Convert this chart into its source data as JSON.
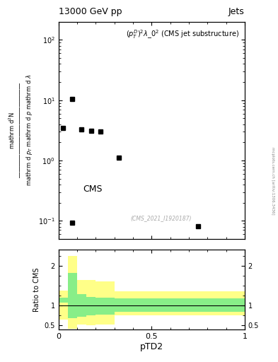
{
  "title_left": "13000 GeV pp",
  "title_right": "Jets",
  "annotation": "$(p_T^D)^2\\lambda\\_0^2$ (CMS jet substructure)",
  "watermark": "(CMS_2021_I1920187)",
  "arxiv": "mcplots.cern.ch [arXiv:1306.3436]",
  "xlabel": "pTD2",
  "ylabel_ratio": "Ratio to CMS",
  "data_x": [
    0.025,
    0.075,
    0.125,
    0.175,
    0.225,
    0.325,
    0.75
  ],
  "data_y": [
    3.5,
    10.5,
    3.3,
    3.1,
    3.0,
    1.1,
    0.082
  ],
  "data_x2": [
    0.075
  ],
  "data_y2": [
    0.092
  ],
  "ratio_bins": [
    0.0,
    0.05,
    0.1,
    0.15,
    0.2,
    0.3,
    1.0
  ],
  "ratio_green_lo": [
    1.08,
    0.68,
    0.72,
    0.75,
    0.78,
    0.85,
    0.85
  ],
  "ratio_green_hi": [
    1.2,
    1.82,
    1.28,
    1.22,
    1.2,
    1.18,
    1.18
  ],
  "ratio_yellow_lo": [
    0.65,
    0.42,
    0.52,
    0.5,
    0.52,
    0.75,
    0.75
  ],
  "ratio_yellow_hi": [
    1.38,
    2.25,
    1.65,
    1.65,
    1.6,
    1.35,
    1.35
  ],
  "xlim": [
    0.0,
    1.0
  ],
  "ylim_main_lo": 0.05,
  "ylim_main_hi": 200,
  "ylim_ratio": [
    0.4,
    2.4
  ],
  "green_color": "#88ee88",
  "yellow_color": "#ffff88",
  "data_color": "black"
}
